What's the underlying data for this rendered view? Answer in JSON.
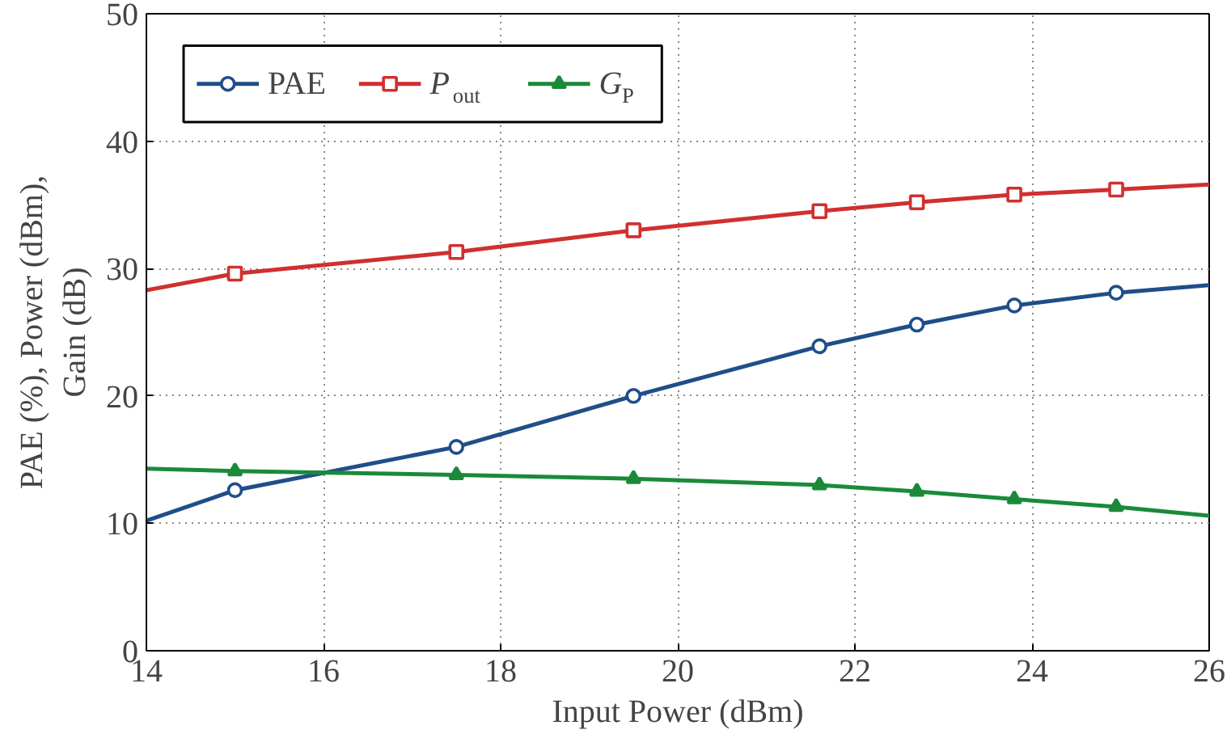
{
  "chart_data": {
    "type": "line",
    "xlabel": "Input Power (dBm)",
    "ylabel": "PAE (%), Power (dBm),\nGain (dB)",
    "xlim": [
      14,
      26
    ],
    "xticks": [
      14,
      16,
      18,
      20,
      22,
      24,
      26
    ],
    "ylim": [
      0,
      50
    ],
    "yticks": [
      0,
      10,
      20,
      30,
      40,
      50
    ],
    "grid": true,
    "legend": "top left",
    "line_style": "solid",
    "series": [
      {
        "name": "PAE",
        "color": "#1f4e89",
        "marker": "circle",
        "x": [
          14,
          15.0,
          17.5,
          19.5,
          21.6,
          22.7,
          23.8,
          24.95,
          26
        ],
        "values": [
          10.2,
          12.6,
          16.0,
          20.0,
          23.9,
          25.6,
          27.1,
          28.1,
          28.7
        ]
      },
      {
        "name": "P$_{out}$",
        "color": "#d03030",
        "marker": "square",
        "x": [
          14,
          15.0,
          17.5,
          19.5,
          21.6,
          22.7,
          23.8,
          24.95,
          26
        ],
        "values": [
          28.3,
          29.6,
          31.3,
          33.0,
          34.5,
          35.2,
          35.8,
          36.2,
          36.6
        ]
      },
      {
        "name": "G$_{P}$",
        "color": "#1a8a3a",
        "marker": "triangle",
        "x": [
          14,
          15.0,
          17.5,
          19.5,
          21.6,
          22.7,
          23.8,
          24.95,
          26
        ],
        "values": [
          14.3,
          14.1,
          13.8,
          13.5,
          13.0,
          12.5,
          11.9,
          11.3,
          10.6
        ]
      }
    ]
  }
}
